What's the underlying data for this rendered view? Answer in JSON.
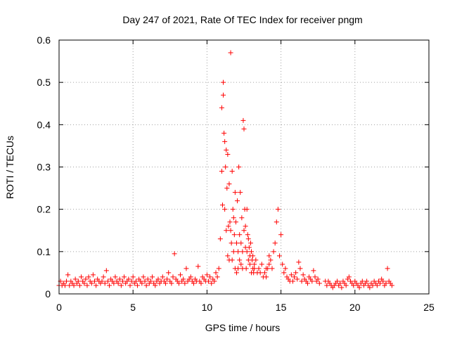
{
  "chart_data": {
    "type": "scatter",
    "title": "Day 247 of 2021, Rate Of TEC Index for receiver pngm",
    "xlabel": "GPS time / hours",
    "ylabel": "ROTI / TECUs",
    "xlim": [
      0,
      25
    ],
    "ylim": [
      0,
      0.6
    ],
    "xticks": [
      "0",
      "5",
      "10",
      "15",
      "20",
      "25"
    ],
    "yticks": [
      "0",
      "0.1",
      "0.2",
      "0.3",
      "0.4",
      "0.5",
      "0.6"
    ],
    "grid": true,
    "marker": "+",
    "color": "#ff0000",
    "series": [
      {
        "x": [
          0.0,
          0.1,
          0.2,
          0.3,
          0.4,
          0.5,
          0.6,
          0.7,
          0.8,
          0.9,
          1.0,
          1.1,
          1.2,
          1.3,
          1.4,
          1.5,
          1.6,
          1.7,
          1.8,
          1.9,
          2.0,
          2.1,
          2.2,
          2.3,
          2.4,
          2.5,
          2.6,
          2.7,
          2.8,
          2.9,
          3.0,
          3.1,
          3.2,
          3.3,
          3.4,
          3.5,
          3.6,
          3.7,
          3.8,
          3.9,
          4.0,
          4.1,
          4.2,
          4.3,
          4.4,
          4.5,
          4.6,
          4.7,
          4.8,
          4.9,
          5.0,
          5.1,
          5.2,
          5.3,
          5.4,
          5.5,
          5.6,
          5.7,
          5.8,
          5.9,
          6.0,
          6.1,
          6.2,
          6.3,
          6.4,
          6.5,
          6.6,
          6.7,
          6.8,
          6.9,
          7.0,
          7.1,
          7.2,
          7.3,
          7.4,
          7.5,
          7.6,
          7.7,
          7.8,
          7.9,
          8.0,
          8.1,
          8.2,
          8.3,
          8.4,
          8.5,
          8.6,
          8.7,
          8.8,
          8.9,
          9.0,
          9.1,
          9.2,
          9.3,
          9.4,
          9.5,
          9.6,
          9.7,
          9.8,
          9.9,
          10.0,
          10.1,
          10.2,
          10.3,
          10.4,
          10.5,
          10.6,
          10.7,
          10.8,
          10.9,
          11.0,
          11.0,
          11.05,
          11.1,
          11.1,
          11.15,
          11.2,
          11.2,
          11.25,
          11.3,
          11.3,
          11.35,
          11.4,
          11.4,
          11.45,
          11.5,
          11.5,
          11.55,
          11.6,
          11.6,
          11.65,
          11.7,
          11.7,
          11.75,
          11.8,
          11.8,
          11.85,
          11.9,
          11.9,
          11.95,
          12.0,
          12.0,
          12.05,
          12.1,
          12.1,
          12.15,
          12.2,
          12.2,
          12.25,
          12.3,
          12.3,
          12.35,
          12.4,
          12.4,
          12.45,
          12.5,
          12.5,
          12.55,
          12.6,
          12.6,
          12.65,
          12.7,
          12.7,
          12.75,
          12.8,
          12.8,
          12.85,
          12.9,
          12.9,
          12.95,
          13.0,
          13.0,
          13.05,
          13.1,
          13.1,
          13.15,
          13.2,
          13.2,
          13.3,
          13.4,
          13.5,
          13.6,
          13.7,
          13.8,
          13.9,
          14.0,
          14.0,
          14.1,
          14.2,
          14.2,
          14.3,
          14.4,
          14.5,
          14.6,
          14.7,
          14.8,
          14.9,
          15.0,
          15.1,
          15.2,
          15.3,
          15.4,
          15.5,
          15.6,
          15.7,
          15.8,
          15.9,
          16.0,
          16.1,
          16.2,
          16.3,
          16.4,
          16.5,
          16.6,
          16.7,
          16.8,
          16.9,
          17.0,
          17.1,
          17.2,
          17.3,
          17.4,
          17.5,
          17.6,
          18.0,
          18.1,
          18.2,
          18.3,
          18.4,
          18.5,
          18.6,
          18.7,
          18.8,
          18.9,
          19.0,
          19.1,
          19.2,
          19.3,
          19.4,
          19.5,
          19.6,
          19.7,
          19.8,
          19.9,
          20.0,
          20.1,
          20.2,
          20.3,
          20.4,
          20.5,
          20.6,
          20.7,
          20.8,
          20.9,
          21.0,
          21.1,
          21.2,
          21.3,
          21.4,
          21.5,
          21.6,
          21.7,
          21.8,
          21.9,
          22.0,
          22.1,
          22.2,
          22.3,
          22.4,
          22.5
        ],
        "y": [
          0.02,
          0.03,
          0.02,
          0.025,
          0.02,
          0.03,
          0.045,
          0.02,
          0.03,
          0.025,
          0.02,
          0.035,
          0.025,
          0.03,
          0.02,
          0.04,
          0.03,
          0.025,
          0.035,
          0.02,
          0.04,
          0.03,
          0.025,
          0.045,
          0.03,
          0.02,
          0.035,
          0.03,
          0.025,
          0.03,
          0.04,
          0.025,
          0.055,
          0.03,
          0.02,
          0.035,
          0.03,
          0.025,
          0.04,
          0.03,
          0.025,
          0.035,
          0.02,
          0.03,
          0.04,
          0.025,
          0.03,
          0.035,
          0.02,
          0.03,
          0.04,
          0.025,
          0.03,
          0.02,
          0.035,
          0.03,
          0.025,
          0.04,
          0.03,
          0.02,
          0.035,
          0.025,
          0.03,
          0.04,
          0.025,
          0.02,
          0.03,
          0.035,
          0.025,
          0.03,
          0.04,
          0.03,
          0.025,
          0.035,
          0.05,
          0.03,
          0.025,
          0.04,
          0.095,
          0.035,
          0.03,
          0.025,
          0.045,
          0.03,
          0.035,
          0.025,
          0.06,
          0.03,
          0.035,
          0.04,
          0.03,
          0.025,
          0.035,
          0.03,
          0.065,
          0.03,
          0.025,
          0.04,
          0.035,
          0.03,
          0.045,
          0.03,
          0.04,
          0.025,
          0.035,
          0.03,
          0.05,
          0.04,
          0.06,
          0.13,
          0.44,
          0.29,
          0.21,
          0.47,
          0.5,
          0.38,
          0.36,
          0.2,
          0.3,
          0.34,
          0.15,
          0.25,
          0.33,
          0.09,
          0.16,
          0.26,
          0.08,
          0.17,
          0.15,
          0.57,
          0.12,
          0.29,
          0.08,
          0.2,
          0.18,
          0.1,
          0.14,
          0.24,
          0.06,
          0.17,
          0.12,
          0.05,
          0.22,
          0.1,
          0.06,
          0.3,
          0.14,
          0.08,
          0.24,
          0.12,
          0.07,
          0.18,
          0.1,
          0.06,
          0.41,
          0.15,
          0.39,
          0.2,
          0.11,
          0.16,
          0.06,
          0.2,
          0.1,
          0.14,
          0.13,
          0.08,
          0.11,
          0.07,
          0.09,
          0.12,
          0.05,
          0.1,
          0.08,
          0.06,
          0.09,
          0.05,
          0.07,
          0.06,
          0.08,
          0.05,
          0.06,
          0.05,
          0.07,
          0.04,
          0.05,
          0.04,
          0.06,
          0.06,
          0.07,
          0.09,
          0.08,
          0.06,
          0.1,
          0.12,
          0.17,
          0.2,
          0.09,
          0.14,
          0.07,
          0.05,
          0.06,
          0.04,
          0.035,
          0.03,
          0.045,
          0.03,
          0.04,
          0.05,
          0.035,
          0.075,
          0.06,
          0.03,
          0.045,
          0.035,
          0.03,
          0.025,
          0.04,
          0.035,
          0.03,
          0.055,
          0.04,
          0.03,
          0.035,
          0.025,
          0.03,
          0.02,
          0.03,
          0.025,
          0.02,
          0.015,
          0.02,
          0.025,
          0.03,
          0.02,
          0.025,
          0.015,
          0.03,
          0.025,
          0.02,
          0.035,
          0.04,
          0.03,
          0.025,
          0.02,
          0.03,
          0.025,
          0.02,
          0.015,
          0.025,
          0.03,
          0.02,
          0.025,
          0.03,
          0.02,
          0.015,
          0.025,
          0.02,
          0.03,
          0.025,
          0.02,
          0.03,
          0.025,
          0.035,
          0.03,
          0.02,
          0.025,
          0.06,
          0.03,
          0.025,
          0.02
        ]
      }
    ]
  }
}
